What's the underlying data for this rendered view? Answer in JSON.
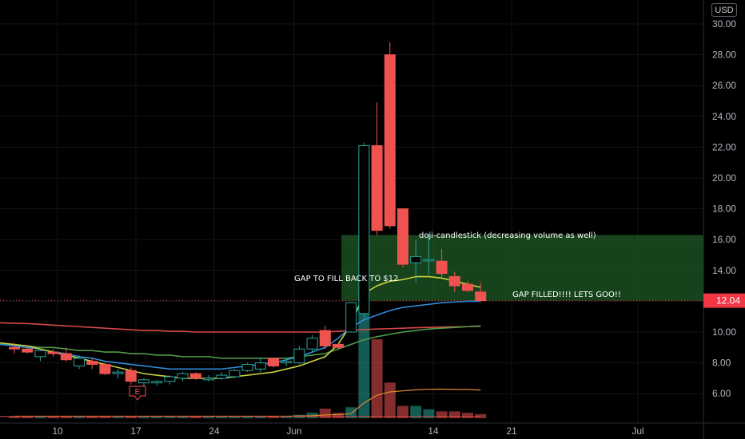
{
  "currency_button": "USD",
  "chart_data": {
    "type": "candlestick",
    "y_ticks": [
      "30.00",
      "28.00",
      "26.00",
      "24.00",
      "22.00",
      "20.00",
      "18.00",
      "16.00",
      "14.00",
      "12.00",
      "10.00",
      "8.00",
      "6.00"
    ],
    "y_tick_values": [
      30,
      28,
      26,
      24,
      22,
      20,
      18,
      16,
      14,
      12,
      10,
      8,
      6
    ],
    "x_ticks": [
      "10",
      "17",
      "24",
      "Jun",
      "14",
      "21",
      "Jul"
    ],
    "ylim": [
      4.2,
      31.2
    ],
    "last_price": "12.04",
    "last_price_value": 12.04,
    "colors": {
      "up": "#26a69a",
      "down": "#ef5350",
      "ma_yellow": "#c9d13c",
      "ma_blue": "#2f8ad8",
      "ma_red": "#d84848",
      "ma_green": "#4f9a4a",
      "gap_zone": "#1f5a25",
      "price_label": "#f23645"
    },
    "candles": [
      {
        "o": 9.0,
        "h": 9.3,
        "l": 8.6,
        "c": 8.9
      },
      {
        "o": 8.9,
        "h": 9.1,
        "l": 8.6,
        "c": 8.7
      },
      {
        "o": 8.4,
        "h": 8.9,
        "l": 8.1,
        "c": 8.8
      },
      {
        "o": 8.7,
        "h": 8.9,
        "l": 8.4,
        "c": 8.6
      },
      {
        "o": 8.6,
        "h": 9.0,
        "l": 8.1,
        "c": 8.2
      },
      {
        "o": 7.8,
        "h": 8.5,
        "l": 7.6,
        "c": 8.3
      },
      {
        "o": 8.1,
        "h": 8.3,
        "l": 7.6,
        "c": 7.9
      },
      {
        "o": 7.9,
        "h": 8.0,
        "l": 7.2,
        "c": 7.3
      },
      {
        "o": 7.3,
        "h": 7.6,
        "l": 7.0,
        "c": 7.4
      },
      {
        "o": 7.5,
        "h": 7.7,
        "l": 6.6,
        "c": 6.8
      },
      {
        "o": 6.7,
        "h": 7.0,
        "l": 6.5,
        "c": 6.9
      },
      {
        "o": 6.7,
        "h": 6.9,
        "l": 6.5,
        "c": 6.8
      },
      {
        "o": 6.8,
        "h": 7.2,
        "l": 6.6,
        "c": 7.1
      },
      {
        "o": 7.0,
        "h": 7.4,
        "l": 6.8,
        "c": 7.3
      },
      {
        "o": 7.3,
        "h": 7.4,
        "l": 6.9,
        "c": 7.0
      },
      {
        "o": 6.9,
        "h": 7.2,
        "l": 6.8,
        "c": 7.0
      },
      {
        "o": 7.0,
        "h": 7.4,
        "l": 6.9,
        "c": 7.2
      },
      {
        "o": 7.1,
        "h": 7.6,
        "l": 7.0,
        "c": 7.5
      },
      {
        "o": 7.5,
        "h": 8.0,
        "l": 7.4,
        "c": 7.9
      },
      {
        "o": 7.6,
        "h": 8.3,
        "l": 7.4,
        "c": 8.0
      },
      {
        "o": 8.3,
        "h": 8.3,
        "l": 7.7,
        "c": 7.8
      },
      {
        "o": 8.0,
        "h": 8.3,
        "l": 7.8,
        "c": 8.1
      },
      {
        "o": 8.0,
        "h": 9.1,
        "l": 7.9,
        "c": 8.9
      },
      {
        "o": 8.9,
        "h": 9.8,
        "l": 8.7,
        "c": 9.6
      },
      {
        "o": 10.1,
        "h": 10.4,
        "l": 8.9,
        "c": 9.1
      },
      {
        "o": 9.2,
        "h": 9.3,
        "l": 8.9,
        "c": 9.0
      },
      {
        "o": 10.0,
        "h": 11.9,
        "l": 10.0,
        "c": 11.9
      },
      {
        "o": 11.2,
        "h": 22.3,
        "l": 10.9,
        "c": 22.1
      },
      {
        "o": 22.1,
        "h": 24.9,
        "l": 16.3,
        "c": 16.6
      },
      {
        "o": 28.0,
        "h": 28.8,
        "l": 16.7,
        "c": 16.9
      },
      {
        "o": 18.0,
        "h": 18.0,
        "l": 14.2,
        "c": 14.4
      },
      {
        "o": 14.5,
        "h": 16.0,
        "l": 13.2,
        "c": 14.9
      },
      {
        "o": 14.7,
        "h": 16.4,
        "l": 13.7,
        "c": 14.7
      },
      {
        "o": 14.6,
        "h": 15.4,
        "l": 13.5,
        "c": 13.8
      },
      {
        "o": 13.6,
        "h": 13.9,
        "l": 12.6,
        "c": 13.0
      },
      {
        "o": 13.1,
        "h": 13.3,
        "l": 12.6,
        "c": 12.7
      },
      {
        "o": 12.6,
        "h": 13.2,
        "l": 12.0,
        "c": 12.04
      }
    ],
    "volumes": [
      0.3,
      0.3,
      0.3,
      0.3,
      0.3,
      0.3,
      0.3,
      0.3,
      0.3,
      0.3,
      0.3,
      0.3,
      0.3,
      0.3,
      0.3,
      0.3,
      0.3,
      0.3,
      0.3,
      0.3,
      0.3,
      0.3,
      0.5,
      0.8,
      1.4,
      0.8,
      1.6,
      16,
      11.5,
      5.2,
      1.8,
      1.8,
      1.3,
      1.0,
      1.0,
      0.8,
      0.6
    ],
    "ma_yellow": [
      9.3,
      9.1,
      8.9,
      8.7,
      8.5,
      8.3,
      8.1,
      7.9,
      7.7,
      7.5,
      7.3,
      7.2,
      7.1,
      7.0,
      7.0,
      7.0,
      7.0,
      7.1,
      7.2,
      7.3,
      7.4,
      7.6,
      7.8,
      8.1,
      8.4,
      9.2,
      10.5,
      12.5,
      13.0,
      13.3,
      13.4,
      13.6,
      13.6,
      13.5,
      13.3,
      13.1,
      12.9
    ],
    "ma_blue": [
      9.2,
      9.0,
      8.9,
      8.7,
      8.6,
      8.4,
      8.3,
      8.1,
      8.0,
      7.9,
      7.8,
      7.7,
      7.6,
      7.6,
      7.6,
      7.6,
      7.6,
      7.7,
      7.8,
      7.9,
      8.0,
      8.2,
      8.4,
      8.7,
      9.0,
      9.6,
      10.3,
      10.8,
      11.1,
      11.4,
      11.6,
      11.7,
      11.8,
      11.9,
      11.95,
      12.0,
      12.0
    ],
    "ma_green": [
      9.2,
      9.1,
      9.0,
      9.0,
      8.9,
      8.8,
      8.8,
      8.7,
      8.7,
      8.6,
      8.6,
      8.5,
      8.5,
      8.4,
      8.4,
      8.4,
      8.3,
      8.3,
      8.3,
      8.3,
      8.3,
      8.3,
      8.4,
      8.5,
      8.6,
      8.9,
      9.2,
      9.5,
      9.7,
      9.85,
      10.0,
      10.1,
      10.2,
      10.25,
      10.3,
      10.35,
      10.4
    ],
    "ma_red": [
      10.6,
      10.55,
      10.5,
      10.45,
      10.4,
      10.35,
      10.3,
      10.25,
      10.2,
      10.15,
      10.1,
      10.1,
      10.05,
      10.05,
      10.0,
      10.0,
      10.0,
      10.0,
      10.0,
      10.0,
      10.0,
      10.0,
      10.0,
      10.0,
      10.0,
      10.05,
      10.1,
      10.15,
      10.2,
      10.22,
      10.25,
      10.28,
      10.3,
      10.32,
      10.34,
      10.35,
      10.37
    ],
    "gap_zone": {
      "low": 12.04,
      "high": 16.3
    },
    "annotations": {
      "doji": "doji-candlestick (decreasing volume as well)",
      "gap_to_fill": "GAP TO FILL BACK TO $12",
      "gap_filled": "GAP FILLED!!!! LETS GOO!!"
    },
    "earnings_marker": "E"
  }
}
